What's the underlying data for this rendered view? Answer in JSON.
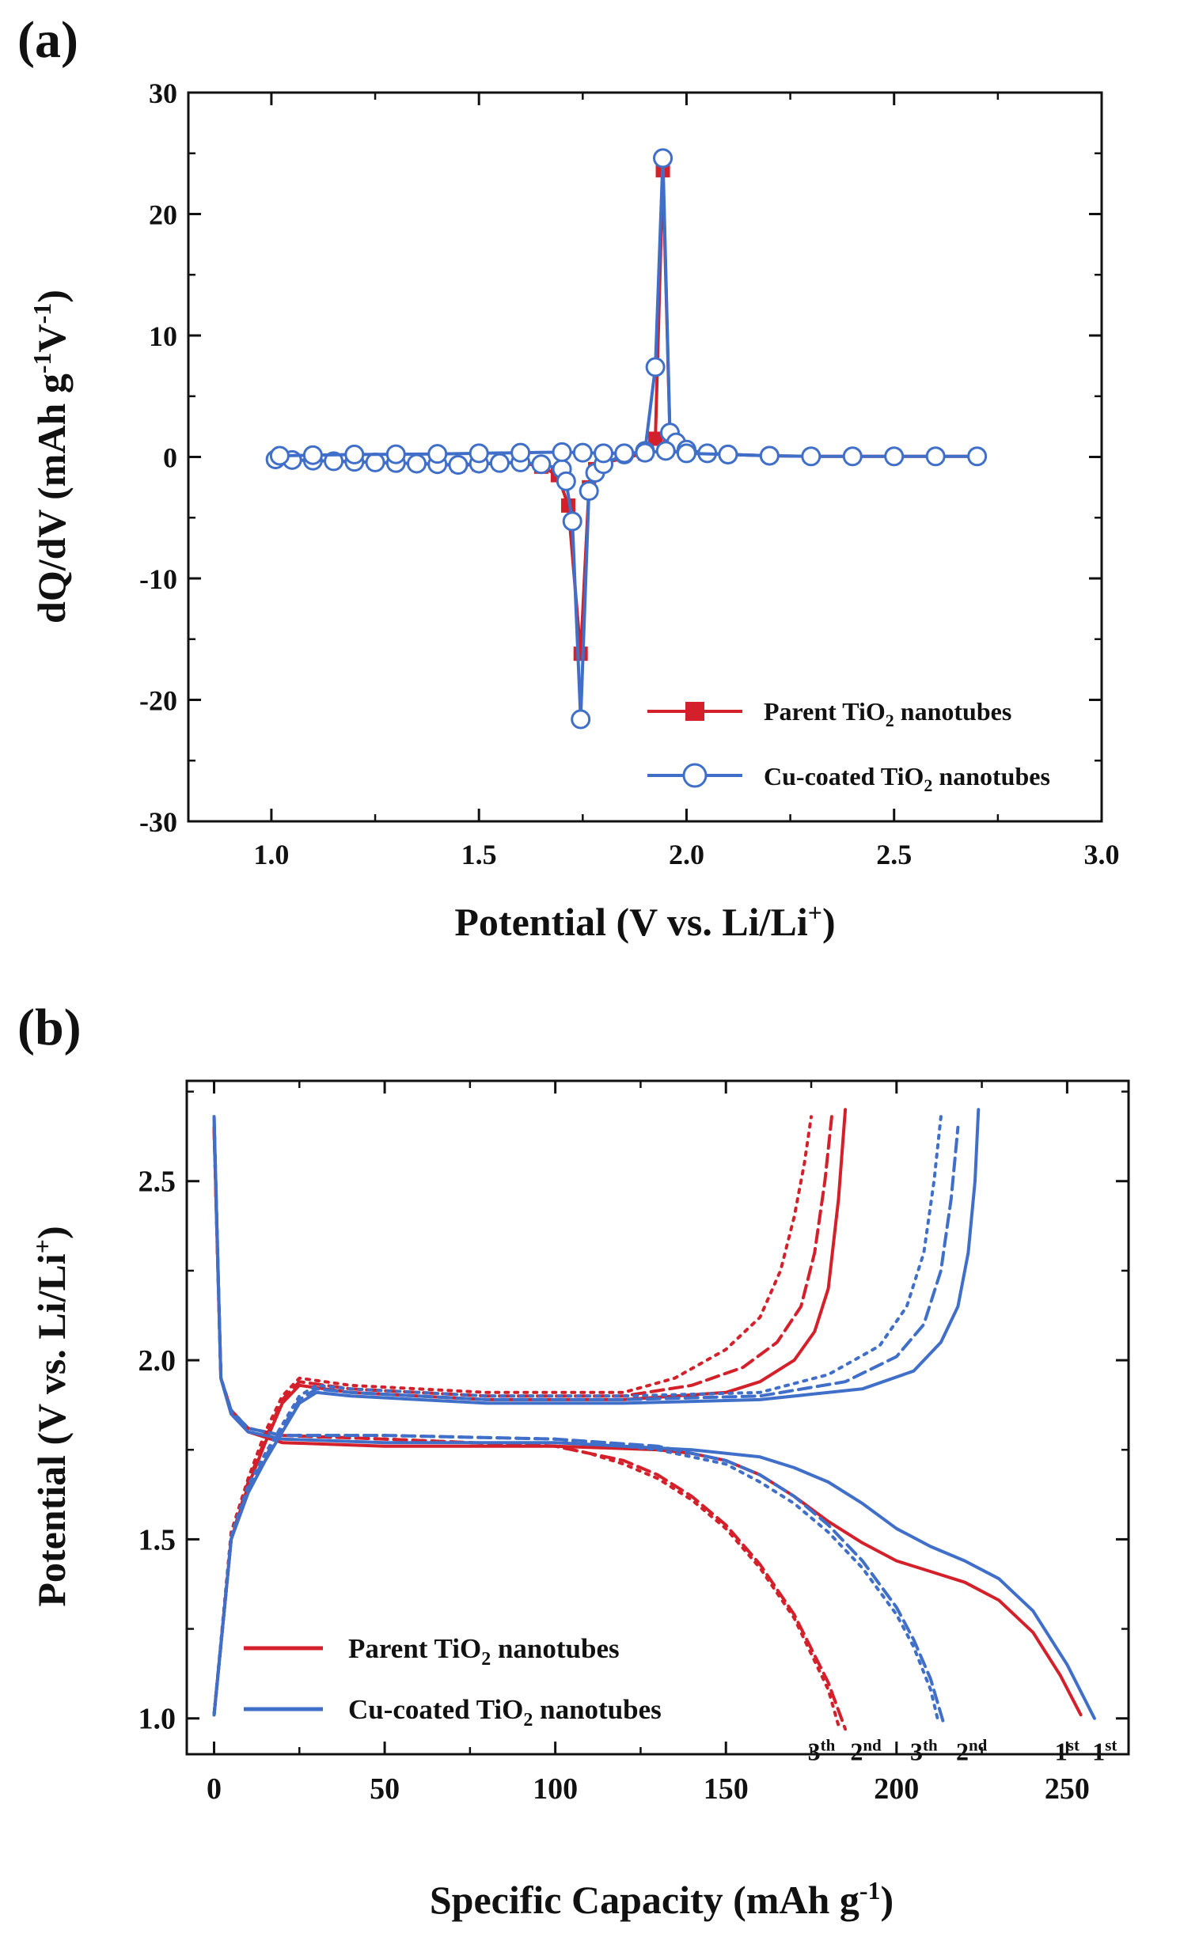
{
  "colors": {
    "parent": "#d4202a",
    "cu": "#3f6fc8",
    "axis": "#111111",
    "background": "#ffffff"
  },
  "chart_data": [
    {
      "panel": "(a)",
      "type": "line",
      "xlabel_main": "Potential (V vs. Li/Li",
      "xlabel_sup": "+",
      "xlabel_close": ")",
      "ylabel": {
        "part1": "dQ/dV (mAh g",
        "sup1": "-1",
        "part2": "V",
        "sup2": "-1",
        "part3": ")"
      },
      "xlim": [
        0.8,
        3.0
      ],
      "ylim": [
        -30,
        30
      ],
      "xticks": [
        1.0,
        1.5,
        2.0,
        2.5,
        3.0
      ],
      "xtick_labels": [
        "1.0",
        "1.5",
        "2.0",
        "2.5",
        "3.0"
      ],
      "yticks": [
        30,
        20,
        10,
        0,
        -10,
        -20,
        -30
      ],
      "ytick_labels": [
        "30",
        "20",
        "10",
        "0",
        "-10",
        "-20",
        "-30"
      ],
      "legend_position": "bottom-right",
      "series": [
        {
          "key": "parent",
          "legend": {
            "pre": "Parent TiO",
            "sub": "2",
            "post": " nanotubes"
          },
          "marker": "filled-square",
          "x": [
            1.01,
            1.05,
            1.1,
            1.15,
            1.2,
            1.25,
            1.3,
            1.35,
            1.4,
            1.45,
            1.5,
            1.55,
            1.6,
            1.65,
            1.69,
            1.715,
            1.745,
            1.765,
            1.78,
            1.8,
            1.9,
            1.925,
            1.943,
            1.96,
            1.975,
            2.0,
            2.05,
            2.1,
            2.2,
            2.3,
            2.4,
            2.5,
            2.6,
            2.7
          ],
          "y": [
            -0.2,
            -0.25,
            -0.3,
            -0.35,
            -0.4,
            -0.45,
            -0.5,
            -0.55,
            -0.6,
            -0.7,
            -0.6,
            -0.5,
            -0.45,
            -0.8,
            -1.5,
            -4.0,
            -16.2,
            -2.5,
            -1.0,
            -0.5,
            0.3,
            1.5,
            23.6,
            1.8,
            1.0,
            0.5,
            0.3,
            0.2,
            0.1,
            0.05,
            0.05,
            0.05,
            0.05,
            0.05
          ]
        },
        {
          "key": "cu",
          "legend": {
            "pre": "Cu-coated TiO",
            "sub": "2",
            "post": " nanotubes"
          },
          "marker": "open-circle",
          "x": [
            1.01,
            1.05,
            1.1,
            1.15,
            1.2,
            1.25,
            1.3,
            1.35,
            1.4,
            1.45,
            1.5,
            1.55,
            1.6,
            1.65,
            1.7,
            1.71,
            1.725,
            1.745,
            1.765,
            1.78,
            1.8,
            1.85,
            1.9,
            1.925,
            1.943,
            1.96,
            1.975,
            2.0,
            2.05,
            2.1,
            2.2,
            2.3,
            2.4,
            2.5,
            2.6,
            2.7
          ],
          "y": [
            -0.2,
            -0.25,
            -0.3,
            -0.35,
            -0.4,
            -0.45,
            -0.5,
            -0.55,
            -0.6,
            -0.65,
            -0.55,
            -0.5,
            -0.45,
            -0.6,
            -1.0,
            -2.0,
            -5.3,
            -21.6,
            -2.8,
            -1.3,
            -0.6,
            0.2,
            0.5,
            7.4,
            24.6,
            2.0,
            1.2,
            0.6,
            0.3,
            0.2,
            0.1,
            0.05,
            0.05,
            0.05,
            0.05,
            0.05
          ]
        },
        {
          "key": "cu_charge",
          "legend": null,
          "marker": "open-circle",
          "x": [
            1.02,
            1.1,
            1.2,
            1.3,
            1.4,
            1.5,
            1.6,
            1.7,
            1.75,
            1.8,
            1.85,
            1.9,
            1.95,
            2.0,
            2.1,
            2.2
          ],
          "y": [
            0.1,
            0.15,
            0.2,
            0.22,
            0.25,
            0.3,
            0.35,
            0.4,
            0.35,
            0.3,
            0.3,
            0.35,
            0.5,
            0.3,
            0.2,
            0.1
          ]
        }
      ]
    },
    {
      "panel": "(b)",
      "type": "line",
      "xlabel": {
        "main": "Specific Capacity (mAh g",
        "sup": "-1",
        "close": ")"
      },
      "ylabel": {
        "main": "Potential (V vs. Li/Li",
        "sup": "+",
        "close": ")"
      },
      "xlim": [
        -8,
        268
      ],
      "ylim": [
        0.9,
        2.78
      ],
      "xticks": [
        0,
        50,
        100,
        150,
        200,
        250
      ],
      "xtick_labels": [
        "0",
        "50",
        "100",
        "150",
        "200",
        "250"
      ],
      "yticks": [
        1.0,
        1.5,
        2.0,
        2.5
      ],
      "ytick_labels": [
        "1.0",
        "1.5",
        "2.0",
        "2.5"
      ],
      "legend_position": "bottom-left",
      "legend": [
        {
          "key": "parent",
          "pre": "Parent TiO",
          "sub": "2",
          "post": " nanotubes"
        },
        {
          "key": "cu",
          "pre": "Cu-coated TiO",
          "sub": "2",
          "post": " nanotubes"
        }
      ],
      "annotations": [
        {
          "x": 178,
          "y": 0.95,
          "num": "3",
          "sup": "th"
        },
        {
          "x": 191,
          "y": 0.95,
          "num": "2",
          "sup": "nd"
        },
        {
          "x": 208,
          "y": 0.95,
          "num": "3",
          "sup": "th"
        },
        {
          "x": 222,
          "y": 0.95,
          "num": "2",
          "sup": "nd"
        },
        {
          "x": 250,
          "y": 0.95,
          "num": "1",
          "sup": "st"
        },
        {
          "x": 261,
          "y": 0.95,
          "num": "1",
          "sup": "st"
        }
      ],
      "series": [
        {
          "key": "parent",
          "cycle": "1st",
          "phase": "discharge",
          "dash": "solid",
          "x": [
            0,
            2,
            5,
            10,
            20,
            50,
            100,
            130,
            140,
            150,
            160,
            170,
            180,
            190,
            200,
            210,
            220,
            230,
            240,
            248,
            254
          ],
          "y": [
            2.65,
            1.95,
            1.85,
            1.8,
            1.77,
            1.76,
            1.76,
            1.75,
            1.74,
            1.72,
            1.68,
            1.62,
            1.55,
            1.49,
            1.44,
            1.41,
            1.38,
            1.33,
            1.24,
            1.12,
            1.01
          ]
        },
        {
          "key": "parent",
          "cycle": "2nd",
          "phase": "discharge",
          "dash": "dashed",
          "x": [
            0,
            2,
            5,
            10,
            20,
            50,
            100,
            110,
            120,
            130,
            140,
            150,
            160,
            170,
            180,
            185
          ],
          "y": [
            2.65,
            1.95,
            1.86,
            1.81,
            1.79,
            1.78,
            1.76,
            1.74,
            1.72,
            1.68,
            1.62,
            1.54,
            1.43,
            1.29,
            1.1,
            0.97
          ]
        },
        {
          "key": "parent",
          "cycle": "3th",
          "phase": "discharge",
          "dash": "dotted",
          "x": [
            0,
            2,
            5,
            10,
            20,
            50,
            100,
            110,
            120,
            130,
            140,
            150,
            160,
            170,
            180,
            183
          ],
          "y": [
            2.65,
            1.95,
            1.86,
            1.81,
            1.79,
            1.78,
            1.76,
            1.74,
            1.71,
            1.67,
            1.61,
            1.53,
            1.42,
            1.28,
            1.08,
            0.98
          ]
        },
        {
          "key": "parent",
          "cycle": "1st",
          "phase": "charge",
          "dash": "solid",
          "x": [
            0,
            5,
            10,
            15,
            20,
            25,
            40,
            80,
            120,
            150,
            160,
            170,
            176,
            180,
            183,
            185
          ],
          "y": [
            1.01,
            1.5,
            1.65,
            1.77,
            1.88,
            1.93,
            1.91,
            1.89,
            1.89,
            1.91,
            1.94,
            2.0,
            2.08,
            2.2,
            2.45,
            2.7
          ]
        },
        {
          "key": "parent",
          "cycle": "2nd",
          "phase": "charge",
          "dash": "dashed",
          "x": [
            0,
            5,
            10,
            15,
            20,
            25,
            40,
            80,
            120,
            140,
            155,
            165,
            172,
            176,
            179,
            181
          ],
          "y": [
            1.01,
            1.5,
            1.66,
            1.78,
            1.89,
            1.94,
            1.92,
            1.9,
            1.9,
            1.93,
            1.98,
            2.05,
            2.15,
            2.3,
            2.5,
            2.68
          ]
        },
        {
          "key": "parent",
          "cycle": "3th",
          "phase": "charge",
          "dash": "dotted",
          "x": [
            0,
            5,
            10,
            15,
            20,
            25,
            40,
            80,
            120,
            135,
            150,
            160,
            166,
            170,
            173,
            175
          ],
          "y": [
            1.01,
            1.52,
            1.67,
            1.8,
            1.9,
            1.95,
            1.93,
            1.91,
            1.91,
            1.95,
            2.03,
            2.12,
            2.25,
            2.4,
            2.55,
            2.68
          ]
        },
        {
          "key": "cu",
          "cycle": "1st",
          "phase": "discharge",
          "dash": "solid",
          "x": [
            0,
            2,
            5,
            10,
            20,
            50,
            100,
            140,
            160,
            170,
            180,
            190,
            200,
            210,
            220,
            230,
            240,
            250,
            258
          ],
          "y": [
            2.68,
            1.95,
            1.85,
            1.8,
            1.78,
            1.77,
            1.77,
            1.75,
            1.73,
            1.7,
            1.66,
            1.6,
            1.53,
            1.48,
            1.44,
            1.39,
            1.3,
            1.15,
            1.0
          ]
        },
        {
          "key": "cu",
          "cycle": "2nd",
          "phase": "discharge",
          "dash": "dashed",
          "x": [
            0,
            2,
            5,
            10,
            20,
            50,
            100,
            130,
            150,
            160,
            170,
            180,
            190,
            200,
            205,
            210,
            214
          ],
          "y": [
            2.68,
            1.95,
            1.86,
            1.81,
            1.79,
            1.79,
            1.78,
            1.76,
            1.72,
            1.68,
            1.62,
            1.54,
            1.44,
            1.31,
            1.22,
            1.11,
            0.98
          ]
        },
        {
          "key": "cu",
          "cycle": "3th",
          "phase": "discharge",
          "dash": "dotted",
          "x": [
            0,
            2,
            5,
            10,
            20,
            50,
            100,
            130,
            150,
            160,
            170,
            180,
            190,
            200,
            205,
            210,
            212
          ],
          "y": [
            2.68,
            1.95,
            1.86,
            1.81,
            1.79,
            1.79,
            1.78,
            1.75,
            1.71,
            1.66,
            1.6,
            1.52,
            1.42,
            1.29,
            1.2,
            1.08,
            1.0
          ]
        },
        {
          "key": "cu",
          "cycle": "1st",
          "phase": "charge",
          "dash": "solid",
          "x": [
            0,
            5,
            10,
            15,
            20,
            25,
            30,
            40,
            80,
            120,
            160,
            190,
            205,
            213,
            218,
            221,
            223,
            224
          ],
          "y": [
            1.01,
            1.5,
            1.63,
            1.72,
            1.8,
            1.88,
            1.91,
            1.9,
            1.88,
            1.88,
            1.89,
            1.92,
            1.97,
            2.05,
            2.15,
            2.3,
            2.5,
            2.7
          ]
        },
        {
          "key": "cu",
          "cycle": "2nd",
          "phase": "charge",
          "dash": "dashed",
          "x": [
            0,
            5,
            10,
            15,
            20,
            25,
            30,
            40,
            80,
            120,
            160,
            185,
            200,
            208,
            213,
            216,
            218
          ],
          "y": [
            1.01,
            1.5,
            1.64,
            1.73,
            1.81,
            1.89,
            1.92,
            1.91,
            1.89,
            1.89,
            1.9,
            1.94,
            2.01,
            2.1,
            2.25,
            2.45,
            2.65
          ]
        },
        {
          "key": "cu",
          "cycle": "3th",
          "phase": "charge",
          "dash": "dotted",
          "x": [
            0,
            5,
            10,
            15,
            20,
            25,
            30,
            40,
            80,
            120,
            160,
            180,
            195,
            203,
            208,
            211,
            213
          ],
          "y": [
            1.01,
            1.51,
            1.65,
            1.74,
            1.82,
            1.9,
            1.93,
            1.92,
            1.9,
            1.9,
            1.91,
            1.96,
            2.04,
            2.15,
            2.3,
            2.5,
            2.68
          ]
        }
      ]
    }
  ]
}
